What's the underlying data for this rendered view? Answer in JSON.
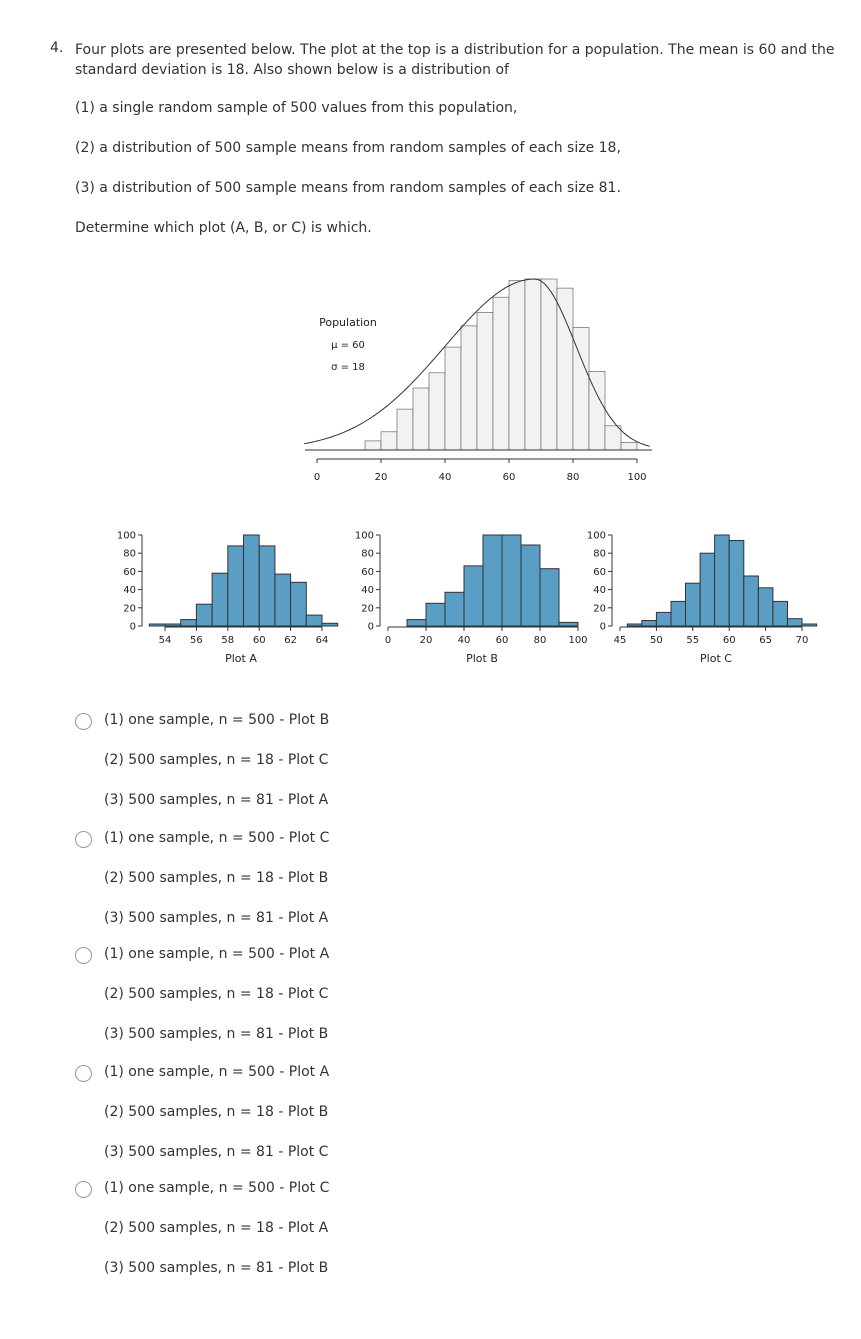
{
  "question": {
    "number": "4.",
    "text": "Four plots are presented below. The plot at the top is a distribution for a population. The mean is 60 and the standard deviation is 18. Also shown below is a distribution of",
    "items": [
      "(1) a single random sample of 500 values from this population,",
      "(2) a distribution of 500 sample means from random samples of each size 18,",
      "(3) a distribution of 500 sample means from random samples of each size 81."
    ],
    "instruction": "Determine which plot (A, B, or C) is which."
  },
  "chart_data": [
    {
      "type": "bar",
      "name": "population",
      "annotation": [
        "Population",
        "μ = 60",
        "σ = 18"
      ],
      "xlim": [
        0,
        100
      ],
      "xticks": [
        "0",
        "20",
        "40",
        "60",
        "80",
        "100"
      ],
      "bin_width": 5,
      "bin_starts": [
        15,
        20,
        25,
        30,
        35,
        40,
        45,
        50,
        55,
        60,
        65,
        70,
        75,
        80,
        85,
        90,
        95
      ],
      "values": [
        6,
        12,
        27,
        41,
        51,
        68,
        82,
        91,
        101,
        112,
        113,
        113,
        107,
        81,
        52,
        16,
        5
      ],
      "ylim": [
        0,
        115
      ],
      "curve": "density"
    },
    {
      "type": "bar",
      "name": "plot-a",
      "xlabel": "Plot A",
      "xlim": [
        53,
        65
      ],
      "xticks": [
        "54",
        "56",
        "58",
        "60",
        "62",
        "64"
      ],
      "yticks": [
        "0",
        "20",
        "40",
        "60",
        "80",
        "100"
      ],
      "ylim": [
        0,
        100
      ],
      "bin_width": 1,
      "bin_starts": [
        53,
        54,
        55,
        56,
        57,
        58,
        59,
        60,
        61,
        62,
        63,
        64
      ],
      "values": [
        1,
        1,
        7,
        24,
        58,
        88,
        100,
        88,
        57,
        48,
        12,
        3
      ]
    },
    {
      "type": "bar",
      "name": "plot-b",
      "xlabel": "Plot B",
      "xlim": [
        0,
        105
      ],
      "xticks": [
        "0",
        "20",
        "40",
        "60",
        "80",
        "100"
      ],
      "yticks": [
        "0",
        "20",
        "40",
        "60",
        "80",
        "100"
      ],
      "ylim": [
        0,
        100
      ],
      "bin_width": 10,
      "bin_starts": [
        0,
        10,
        20,
        30,
        40,
        50,
        60,
        70,
        80,
        90
      ],
      "values": [
        0,
        7,
        25,
        37,
        66,
        100,
        100,
        89,
        63,
        4
      ]
    },
    {
      "type": "bar",
      "name": "plot-c",
      "xlabel": "Plot C",
      "xlim": [
        45,
        72
      ],
      "xticks": [
        "45",
        "50",
        "55",
        "60",
        "65",
        "70"
      ],
      "yticks": [
        "0",
        "20",
        "40",
        "60",
        "80",
        "100"
      ],
      "ylim": [
        0,
        100
      ],
      "bin_width": 2,
      "bin_starts": [
        46,
        48,
        50,
        52,
        54,
        56,
        58,
        60,
        62,
        64,
        66,
        68,
        70
      ],
      "values": [
        1,
        6,
        15,
        27,
        47,
        80,
        100,
        94,
        55,
        42,
        27,
        8,
        2
      ]
    }
  ],
  "options": [
    {
      "lines": [
        "(1) one sample, n = 500 - Plot B",
        "(2) 500 samples, n = 18 - Plot C",
        "(3) 500 samples, n = 81 - Plot A"
      ]
    },
    {
      "lines": [
        "(1) one sample, n = 500 - Plot C",
        "(2) 500 samples, n = 18 - Plot B",
        "(3) 500 samples, n = 81 - Plot A"
      ]
    },
    {
      "lines": [
        "(1) one sample, n = 500 - Plot A",
        "(2) 500 samples, n = 18 - Plot C",
        "(3) 500 samples, n = 81 - Plot B"
      ]
    },
    {
      "lines": [
        "(1) one sample, n = 500 - Plot A",
        "(2) 500 samples, n = 18 - Plot B",
        "(3) 500 samples, n = 81 - Plot C"
      ]
    },
    {
      "lines": [
        "(1) one sample, n = 500 - Plot C",
        "(2) 500 samples, n = 18 - Plot A",
        "(3) 500 samples, n = 81 - Plot B"
      ]
    }
  ],
  "colors": {
    "population_fill": "#f2f2f2",
    "sample_fill": "#5a9ec6",
    "stroke": "#333333"
  }
}
